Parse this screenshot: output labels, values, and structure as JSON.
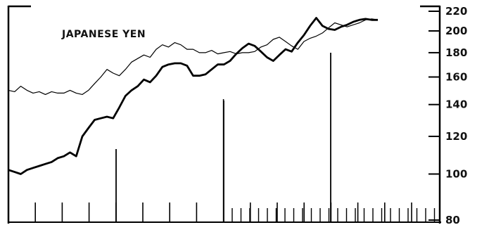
{
  "chart_data": {
    "type": "line",
    "title": "JAPANESE YEN",
    "xlabel": "",
    "ylabel": "",
    "yscale": "log",
    "ylim": [
      80,
      220
    ],
    "yticks": [
      "220",
      "200",
      "180",
      "160",
      "140",
      "120",
      "100",
      "80"
    ],
    "ytick_values": [
      220,
      200,
      180,
      160,
      140,
      120,
      100,
      80
    ],
    "grid": false,
    "x_period_count": 27,
    "series": [
      {
        "style": "thin",
        "values": [
          150,
          149,
          153,
          150,
          148,
          149,
          147,
          149,
          148,
          148,
          150,
          148,
          147,
          150,
          155,
          160,
          166,
          163,
          161,
          166,
          172,
          175,
          178,
          176,
          183,
          187,
          185,
          189,
          187,
          183,
          183,
          180,
          180,
          182,
          179,
          180,
          181,
          179,
          180,
          180,
          181,
          185,
          187,
          192,
          194,
          190,
          186,
          183,
          190,
          193,
          195,
          198,
          203,
          208,
          206,
          204,
          206,
          208,
          211,
          212,
          211
        ]
      },
      {
        "style": "thick",
        "values": [
          102,
          101,
          100,
          102,
          103,
          104,
          105,
          106,
          108,
          109,
          111,
          109,
          120,
          125,
          130,
          131,
          132,
          131,
          138,
          146,
          150,
          153,
          158,
          156,
          161,
          168,
          170,
          171,
          171,
          169,
          161,
          161,
          162,
          166,
          170,
          170,
          173,
          179,
          184,
          188,
          186,
          181,
          176,
          173,
          178,
          183,
          181,
          189,
          196,
          205,
          213,
          205,
          202,
          201,
          204,
          206,
          209,
          211,
          212,
          211,
          211
        ]
      }
    ],
    "volume_bars": [
      {
        "period": 0,
        "level": 0
      },
      {
        "period": 1,
        "level": 0
      },
      {
        "period": 2,
        "level": 0
      },
      {
        "period": 3,
        "level": 0
      },
      {
        "period": 4,
        "level": 1
      },
      {
        "period": 5,
        "level": 0
      },
      {
        "period": 6,
        "level": 0
      },
      {
        "period": 7,
        "level": 0
      },
      {
        "period": 8,
        "level": 3
      },
      {
        "period": 9,
        "level": 0
      },
      {
        "period": 10,
        "level": 0
      },
      {
        "period": 11,
        "level": 0
      },
      {
        "period": 12,
        "level": 0
      },
      {
        "period": 13,
        "level": 0
      },
      {
        "period": 14,
        "level": 0
      },
      {
        "period": 15,
        "level": 0
      },
      {
        "period": 16,
        "level": 0
      },
      {
        "period": 17,
        "level": 0
      },
      {
        "period": 18,
        "level": 0
      },
      {
        "period": 19,
        "level": 0
      },
      {
        "period": 20,
        "level": 0
      },
      {
        "period": 21,
        "level": 0
      },
      {
        "period": 22,
        "level": 0
      },
      {
        "period": 23,
        "level": 0
      },
      {
        "period": 24,
        "level": 0
      },
      {
        "period": 25,
        "level": 0
      },
      {
        "period": 26,
        "level": 0
      },
      {
        "period": 27,
        "level": 0
      }
    ]
  }
}
